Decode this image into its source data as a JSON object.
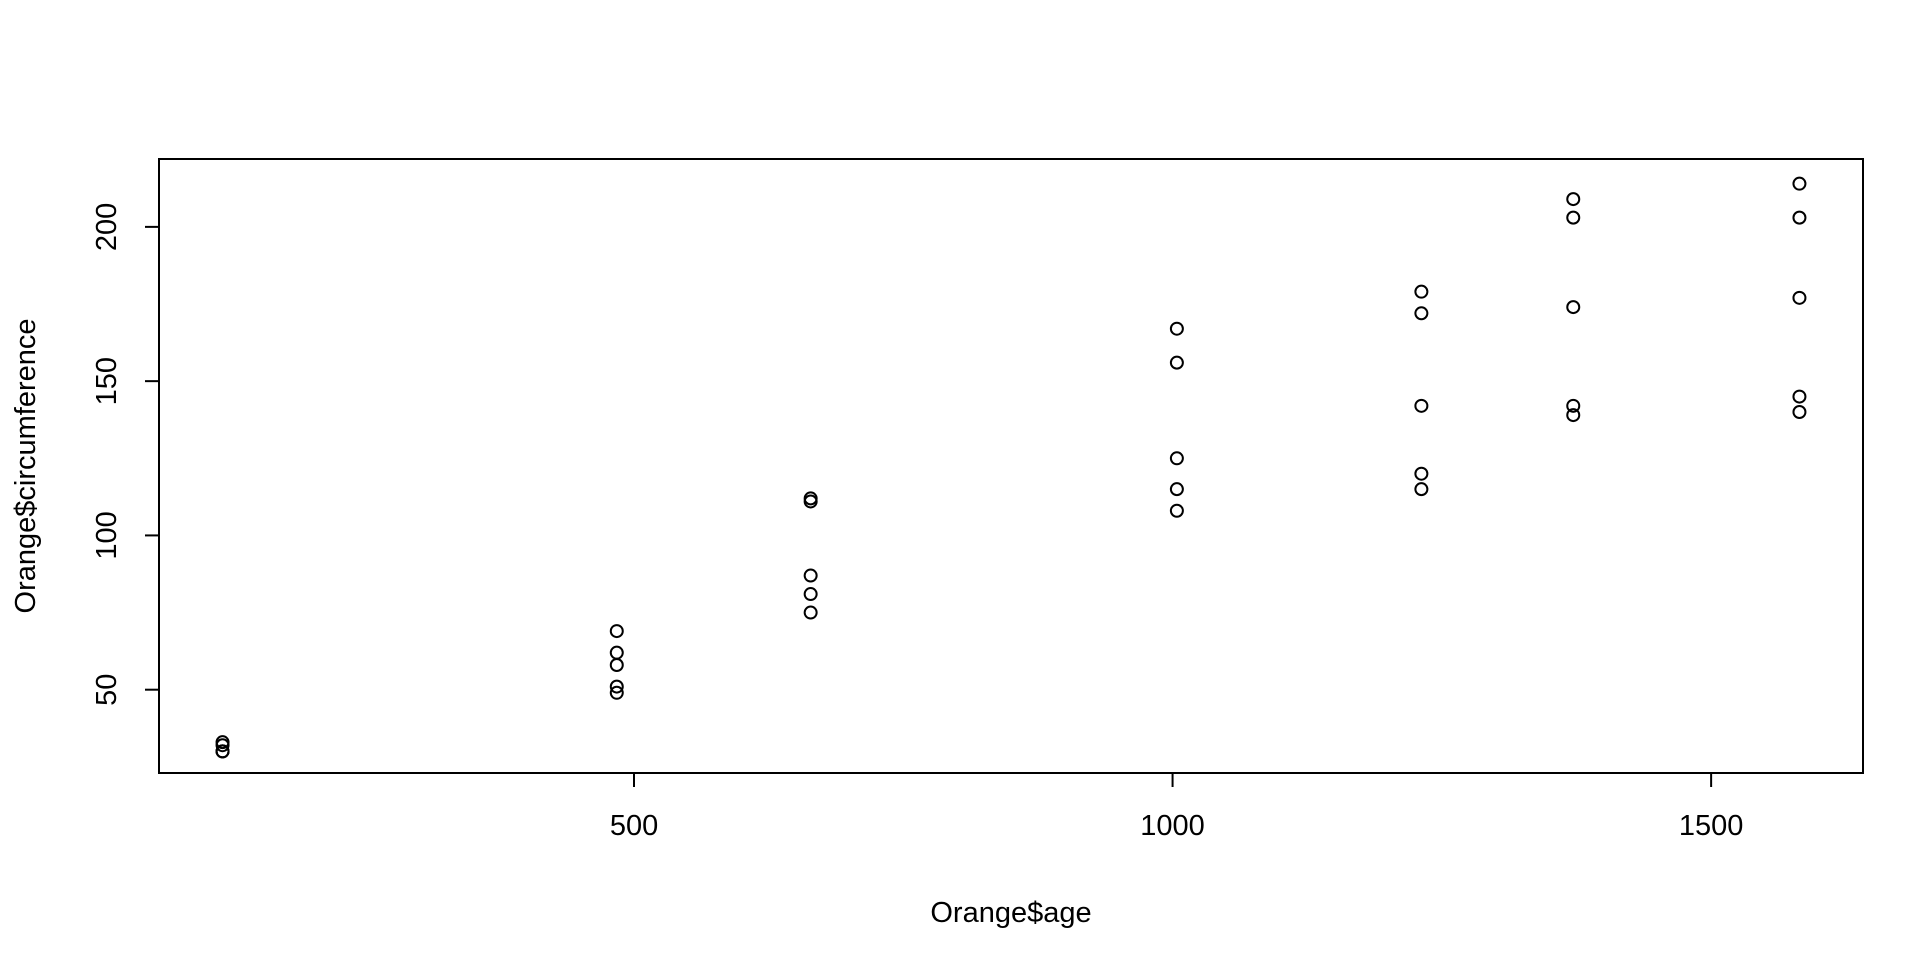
{
  "chart_data": {
    "type": "scatter",
    "title": "",
    "xlabel": "Orange$age",
    "ylabel": "Orange$circumference",
    "xlim": [
      59,
      1641
    ],
    "ylim": [
      23,
      222
    ],
    "xticks": [
      500,
      1000,
      1500
    ],
    "yticks": [
      50,
      100,
      150,
      200
    ],
    "grid": false,
    "legend": "none",
    "marker": "open-circle",
    "color": "#000000",
    "points": [
      {
        "x": 118,
        "y": 30
      },
      {
        "x": 118,
        "y": 33
      },
      {
        "x": 118,
        "y": 30
      },
      {
        "x": 118,
        "y": 32
      },
      {
        "x": 118,
        "y": 30
      },
      {
        "x": 484,
        "y": 58
      },
      {
        "x": 484,
        "y": 69
      },
      {
        "x": 484,
        "y": 51
      },
      {
        "x": 484,
        "y": 62
      },
      {
        "x": 484,
        "y": 49
      },
      {
        "x": 664,
        "y": 87
      },
      {
        "x": 664,
        "y": 111
      },
      {
        "x": 664,
        "y": 75
      },
      {
        "x": 664,
        "y": 112
      },
      {
        "x": 664,
        "y": 81
      },
      {
        "x": 1004,
        "y": 115
      },
      {
        "x": 1004,
        "y": 156
      },
      {
        "x": 1004,
        "y": 108
      },
      {
        "x": 1004,
        "y": 167
      },
      {
        "x": 1004,
        "y": 125
      },
      {
        "x": 1231,
        "y": 120
      },
      {
        "x": 1231,
        "y": 172
      },
      {
        "x": 1231,
        "y": 115
      },
      {
        "x": 1231,
        "y": 179
      },
      {
        "x": 1231,
        "y": 142
      },
      {
        "x": 1372,
        "y": 142
      },
      {
        "x": 1372,
        "y": 203
      },
      {
        "x": 1372,
        "y": 139
      },
      {
        "x": 1372,
        "y": 209
      },
      {
        "x": 1372,
        "y": 174
      },
      {
        "x": 1582,
        "y": 145
      },
      {
        "x": 1582,
        "y": 203
      },
      {
        "x": 1582,
        "y": 140
      },
      {
        "x": 1582,
        "y": 214
      },
      {
        "x": 1582,
        "y": 177
      }
    ]
  }
}
